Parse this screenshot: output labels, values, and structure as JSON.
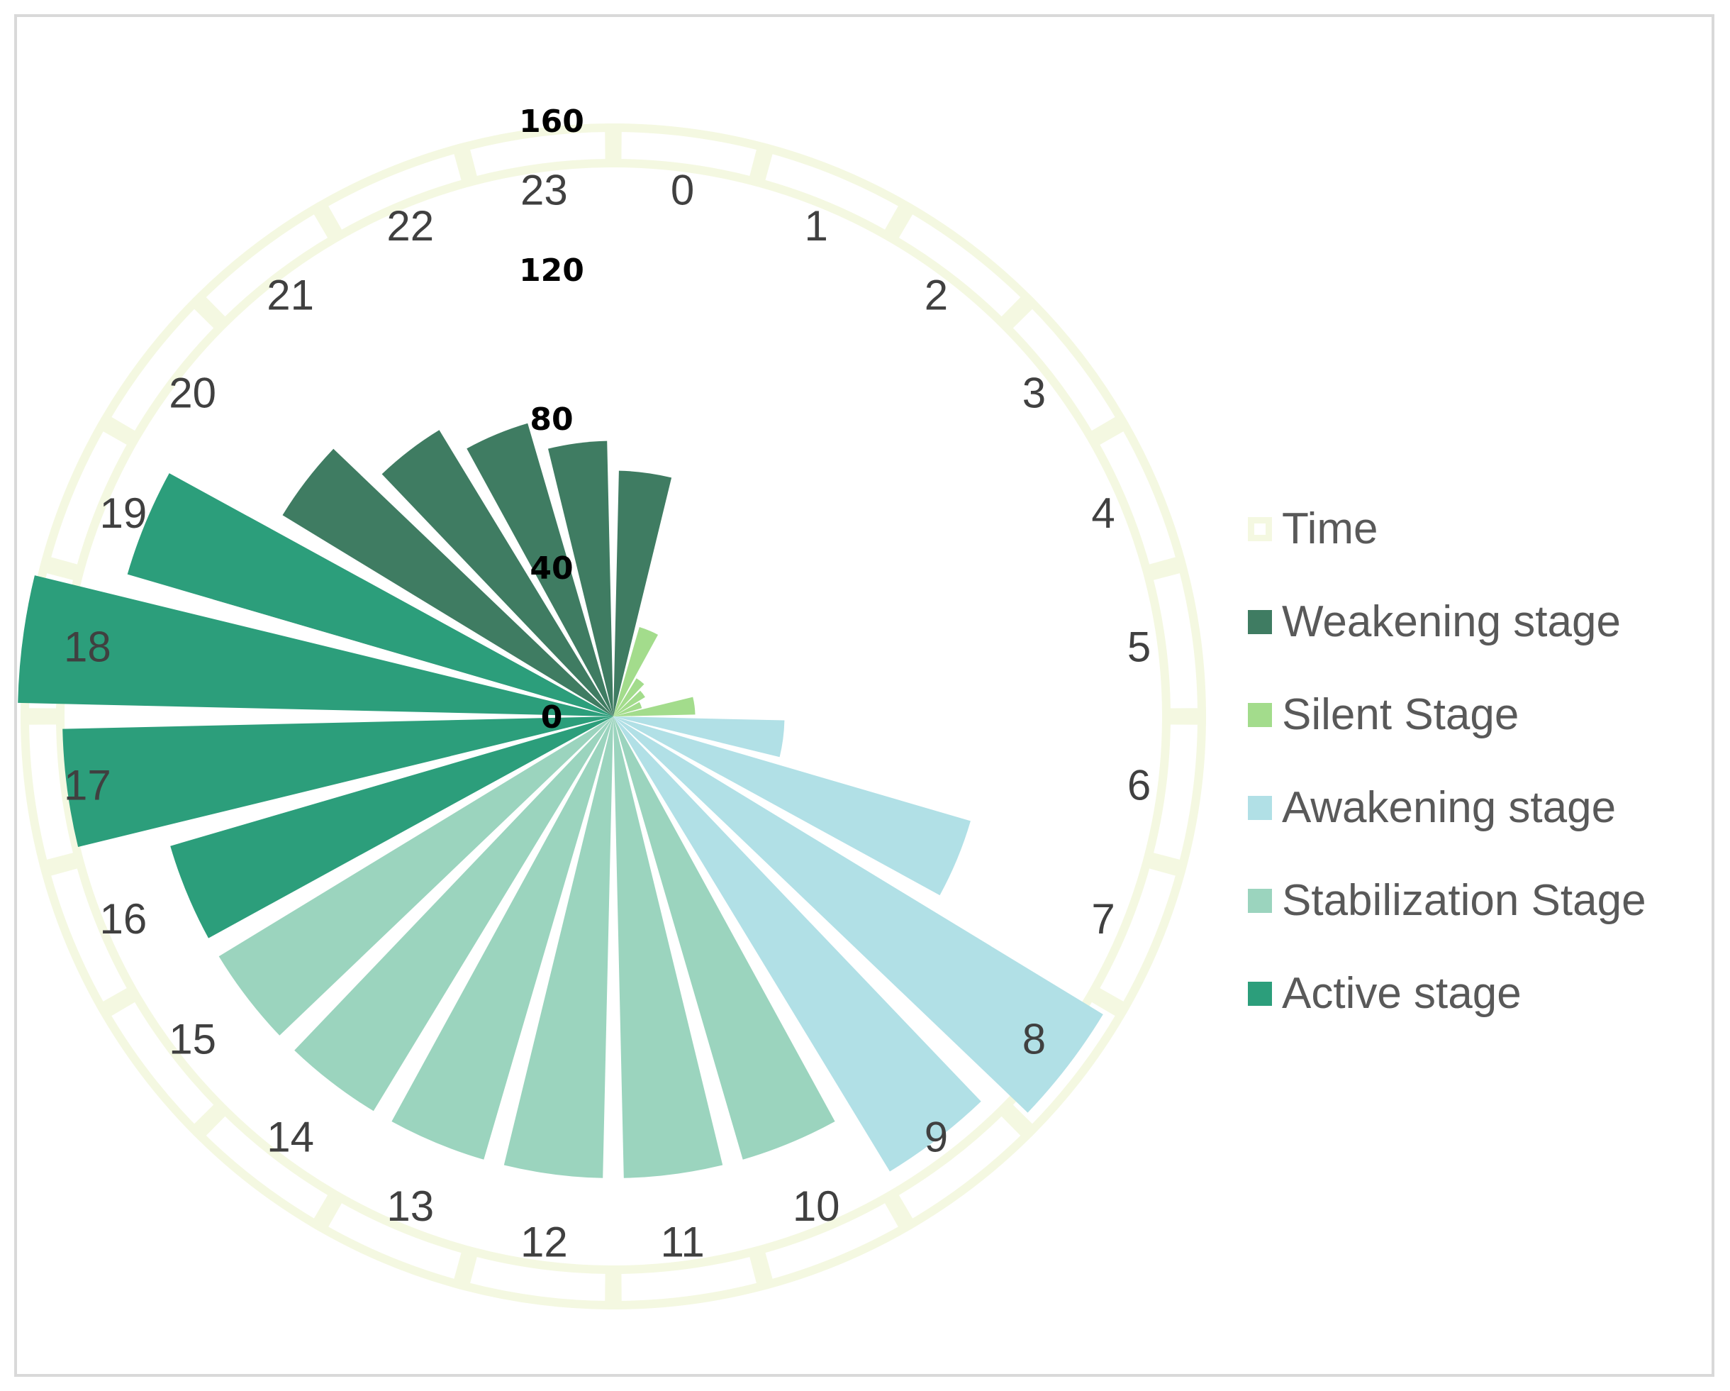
{
  "chart_data": {
    "type": "polar-bar",
    "title": "",
    "radial_axis": {
      "ticks": [
        0,
        40,
        80,
        120,
        160
      ],
      "range": [
        0,
        160
      ]
    },
    "angular_axis": {
      "categories": [
        "0",
        "1",
        "2",
        "3",
        "4",
        "5",
        "6",
        "7",
        "8",
        "9",
        "10",
        "11",
        "12",
        "13",
        "14",
        "15",
        "16",
        "17",
        "18",
        "19",
        "20",
        "21",
        "22",
        "23"
      ]
    },
    "series": [
      {
        "name": "Time",
        "color": "#f4f8e1",
        "render": "outer ring segments",
        "values": [
          1,
          1,
          1,
          1,
          1,
          1,
          1,
          1,
          1,
          1,
          1,
          1,
          1,
          1,
          1,
          1,
          1,
          1,
          1,
          1,
          1,
          1,
          1,
          1
        ]
      },
      {
        "name": "Weakening stage",
        "color": "#3f7c62",
        "values": [
          66,
          null,
          null,
          null,
          null,
          null,
          null,
          null,
          null,
          null,
          null,
          null,
          null,
          null,
          null,
          null,
          null,
          null,
          null,
          112,
          104,
          90,
          82,
          74
        ]
      },
      {
        "name": "Silent Stage",
        "color": "#a3dc8c",
        "values": [
          null,
          25,
          12,
          10,
          8,
          22,
          null,
          null,
          null,
          null,
          null,
          null,
          null,
          null,
          null,
          null,
          null,
          null,
          null,
          null,
          null,
          null,
          null,
          null
        ]
      },
      {
        "name": "Awakening stage",
        "color": "#b1e0e6",
        "values": [
          null,
          null,
          null,
          null,
          null,
          null,
          46,
          100,
          154,
          143,
          null,
          null,
          null,
          null,
          null,
          null,
          null,
          null,
          null,
          null,
          null,
          null,
          null,
          null
        ]
      },
      {
        "name": "Stabilization Stage",
        "color": "#9bd4be",
        "values": [
          null,
          null,
          null,
          null,
          null,
          null,
          null,
          null,
          null,
          null,
          124,
          124,
          124,
          124,
          124,
          124,
          null,
          null,
          null,
          null,
          null,
          null,
          null,
          null
        ]
      },
      {
        "name": "Active stage",
        "color": "#2c9e7b",
        "values": [
          null,
          null,
          null,
          null,
          null,
          null,
          null,
          null,
          null,
          null,
          null,
          null,
          null,
          null,
          null,
          null,
          124,
          148,
          160,
          136,
          null,
          null,
          null,
          null
        ]
      }
    ],
    "legend_position": "right"
  }
}
